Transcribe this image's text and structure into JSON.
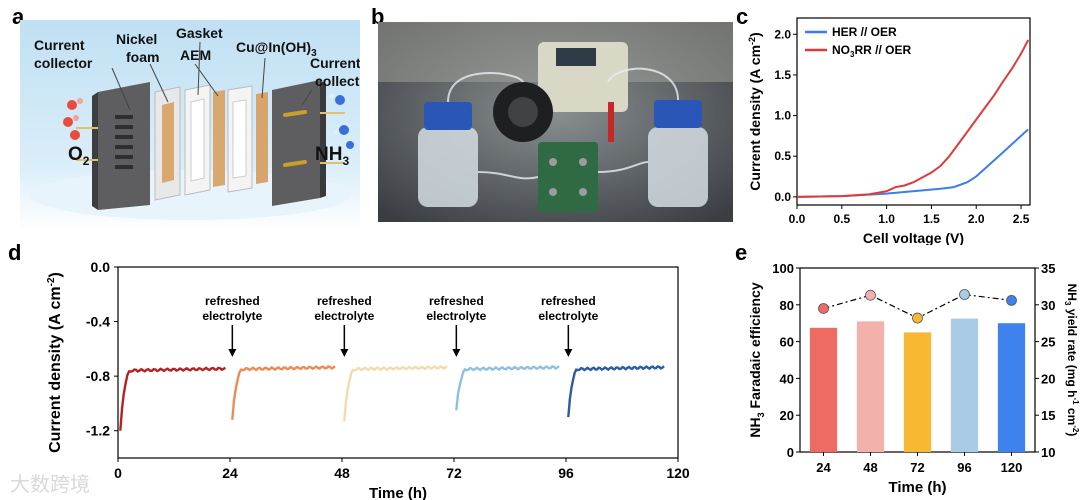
{
  "panels": {
    "a": "a",
    "b": "b",
    "c": "c",
    "d": "d",
    "e": "e"
  },
  "panel_a": {
    "labels": {
      "current_collector_left": [
        "Current",
        "collector"
      ],
      "nickel_foam": [
        "Nickel",
        "foam"
      ],
      "gasket": "Gasket",
      "aem": "AEM",
      "catalyst": "Cu@In(OH)3",
      "current_collector_right": [
        "Current",
        "collector"
      ],
      "o2": "O2",
      "nh3": "NH3"
    }
  },
  "watermark": "大数跨境",
  "chart_data": [
    {
      "id": "c",
      "type": "line",
      "xlabel": "Cell voltage (V)",
      "ylabel": "Current density (A cm-2)",
      "xlim": [
        0.0,
        2.6
      ],
      "ylim": [
        -0.1,
        2.2
      ],
      "xticks": [
        "0.0",
        "0.5",
        "1.0",
        "1.5",
        "2.0",
        "2.5"
      ],
      "xtick_values": [
        0,
        0.5,
        1.0,
        1.5,
        2.0,
        2.5
      ],
      "yticks": [
        "0.0",
        "0.5",
        "1.0",
        "1.5",
        "2.0"
      ],
      "ytick_values": [
        0,
        0.5,
        1.0,
        1.5,
        2.0
      ],
      "legend_position": "top-left",
      "series": [
        {
          "name": "HER // OER",
          "color": "#3d7ee8",
          "x": [
            0,
            0.5,
            1.0,
            1.2,
            1.4,
            1.6,
            1.75,
            1.9,
            2.0,
            2.1,
            2.2,
            2.3,
            2.4,
            2.5,
            2.58
          ],
          "y": [
            0,
            0.01,
            0.04,
            0.06,
            0.08,
            0.1,
            0.12,
            0.18,
            0.25,
            0.35,
            0.45,
            0.55,
            0.65,
            0.75,
            0.83
          ]
        },
        {
          "name": "NO3RR // OER",
          "color": "#e03a3a",
          "x": [
            0,
            0.5,
            0.8,
            1.0,
            1.1,
            1.2,
            1.3,
            1.4,
            1.5,
            1.6,
            1.7,
            1.8,
            1.9,
            2.0,
            2.1,
            2.2,
            2.3,
            2.4,
            2.5,
            2.58
          ],
          "y": [
            0,
            0.01,
            0.03,
            0.07,
            0.12,
            0.14,
            0.18,
            0.24,
            0.3,
            0.38,
            0.5,
            0.65,
            0.8,
            0.95,
            1.1,
            1.25,
            1.42,
            1.58,
            1.76,
            1.93
          ]
        }
      ]
    },
    {
      "id": "d",
      "type": "line",
      "xlabel": "Time (h)",
      "ylabel": "Current density (A cm-2)",
      "xlim": [
        0,
        120
      ],
      "ylim": [
        -1.4,
        0.0
      ],
      "xticks": [
        "0",
        "24",
        "48",
        "72",
        "96",
        "120"
      ],
      "xtick_values": [
        0,
        24,
        48,
        72,
        96,
        120
      ],
      "yticks": [
        "0.0",
        "-0.4",
        "-0.8",
        "-1.2"
      ],
      "ytick_values": [
        0,
        -0.4,
        -0.8,
        -1.2
      ],
      "annotations": [
        {
          "text": [
            "refreshed",
            "electrolyte"
          ],
          "x": 24.5
        },
        {
          "text": [
            "refreshed",
            "electrolyte"
          ],
          "x": 48.5
        },
        {
          "text": [
            "refreshed",
            "electrolyte"
          ],
          "x": 72.5
        },
        {
          "text": [
            "refreshed",
            "electrolyte"
          ],
          "x": 96.5
        }
      ],
      "segments": [
        {
          "color": "#b52226",
          "start": 0.5,
          "end": 23,
          "initial": -1.2,
          "steady": -0.76
        },
        {
          "color": "#f08a52",
          "start": 24.5,
          "end": 46.5,
          "initial": -1.12,
          "steady": -0.75
        },
        {
          "color": "#f1dcae",
          "start": 48.5,
          "end": 70.5,
          "initial": -1.13,
          "steady": -0.75
        },
        {
          "color": "#8fc0e3",
          "start": 72.5,
          "end": 94.5,
          "initial": -1.05,
          "steady": -0.75
        },
        {
          "color": "#2c5d9c",
          "start": 96.5,
          "end": 117,
          "initial": -1.1,
          "steady": -0.75
        }
      ]
    },
    {
      "id": "e",
      "type": "bar",
      "xlabel": "Time (h)",
      "ylabel": "NH3 Faradaic efficiency",
      "ylabel_right": "NH3 yield rate (mg h-1 cm-2)",
      "categories": [
        "24",
        "48",
        "72",
        "96",
        "120"
      ],
      "ylim": [
        0,
        100
      ],
      "yticks": [
        "0",
        "20",
        "40",
        "60",
        "80",
        "100"
      ],
      "ytick_values": [
        0,
        20,
        40,
        60,
        80,
        100
      ],
      "y2lim": [
        10,
        35
      ],
      "y2ticks": [
        "10",
        "15",
        "20",
        "25",
        "30",
        "35"
      ],
      "y2tick_values": [
        10,
        15,
        20,
        25,
        30,
        35
      ],
      "series": [
        {
          "name": "Faradaic efficiency",
          "type": "bar",
          "values": [
            67.5,
            71,
            65,
            72.5,
            70
          ]
        },
        {
          "name": "Yield rate",
          "type": "dot-line",
          "values": [
            29.5,
            31.3,
            28.2,
            31.4,
            30.6
          ]
        }
      ],
      "colors": [
        "#ee6b64",
        "#f3b1ab",
        "#f7b832",
        "#a9cbe6",
        "#3f82ee"
      ]
    }
  ]
}
